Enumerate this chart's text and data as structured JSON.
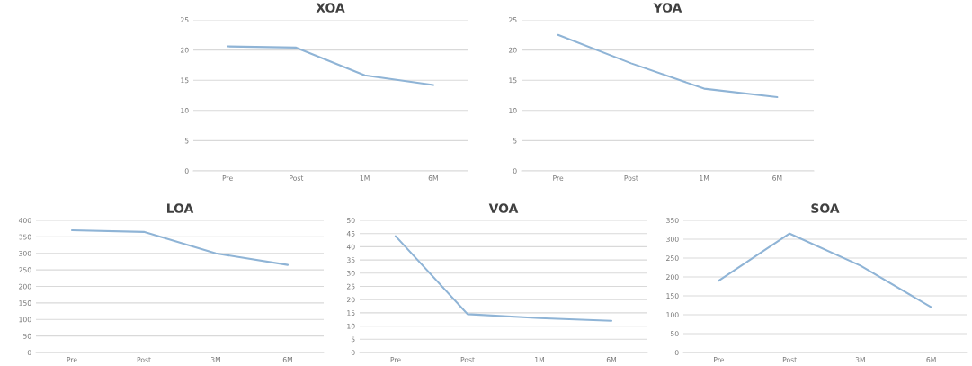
{
  "chart_data": [
    {
      "type": "line",
      "title": "XOA",
      "categories": [
        "Pre",
        "Post",
        "1M",
        "6M"
      ],
      "series": [
        {
          "color": "#8fb4d6",
          "values": [
            20.6,
            20.4,
            15.8,
            14.2
          ]
        }
      ],
      "ylim": [
        0,
        25
      ],
      "yticks": [
        0,
        5,
        10,
        15,
        20,
        25
      ],
      "grid": "y"
    },
    {
      "type": "line",
      "title": "YOA",
      "categories": [
        "Pre",
        "Post",
        "1M",
        "6M"
      ],
      "series": [
        {
          "color": "#8fb4d6",
          "values": [
            22.5,
            17.8,
            13.6,
            12.2
          ]
        }
      ],
      "ylim": [
        0,
        25
      ],
      "yticks": [
        0,
        5,
        10,
        15,
        20,
        25
      ],
      "grid": "y"
    },
    {
      "type": "line",
      "title": "LOA",
      "categories": [
        "Pre",
        "Post",
        "3M",
        "6M"
      ],
      "series": [
        {
          "color": "#8fb4d6",
          "values": [
            370,
            365,
            300,
            265
          ]
        }
      ],
      "ylim": [
        0,
        400
      ],
      "yticks": [
        0,
        50,
        100,
        150,
        200,
        250,
        300,
        350,
        400
      ],
      "grid": "y"
    },
    {
      "type": "line",
      "title": "VOA",
      "categories": [
        "Pre",
        "Post",
        "1M",
        "6M"
      ],
      "series": [
        {
          "color": "#8fb4d6",
          "values": [
            44,
            14.5,
            13,
            12
          ]
        }
      ],
      "ylim": [
        0,
        50
      ],
      "yticks": [
        0,
        5,
        10,
        15,
        20,
        25,
        30,
        35,
        40,
        45,
        50
      ],
      "grid": "y"
    },
    {
      "type": "line",
      "title": "SOA",
      "categories": [
        "Pre",
        "Post",
        "3M",
        "6M"
      ],
      "series": [
        {
          "color": "#8fb4d6",
          "values": [
            190,
            315,
            230,
            120
          ]
        }
      ],
      "ylim": [
        0,
        350
      ],
      "yticks": [
        0,
        50,
        100,
        150,
        200,
        250,
        300,
        350
      ],
      "grid": "y"
    }
  ]
}
